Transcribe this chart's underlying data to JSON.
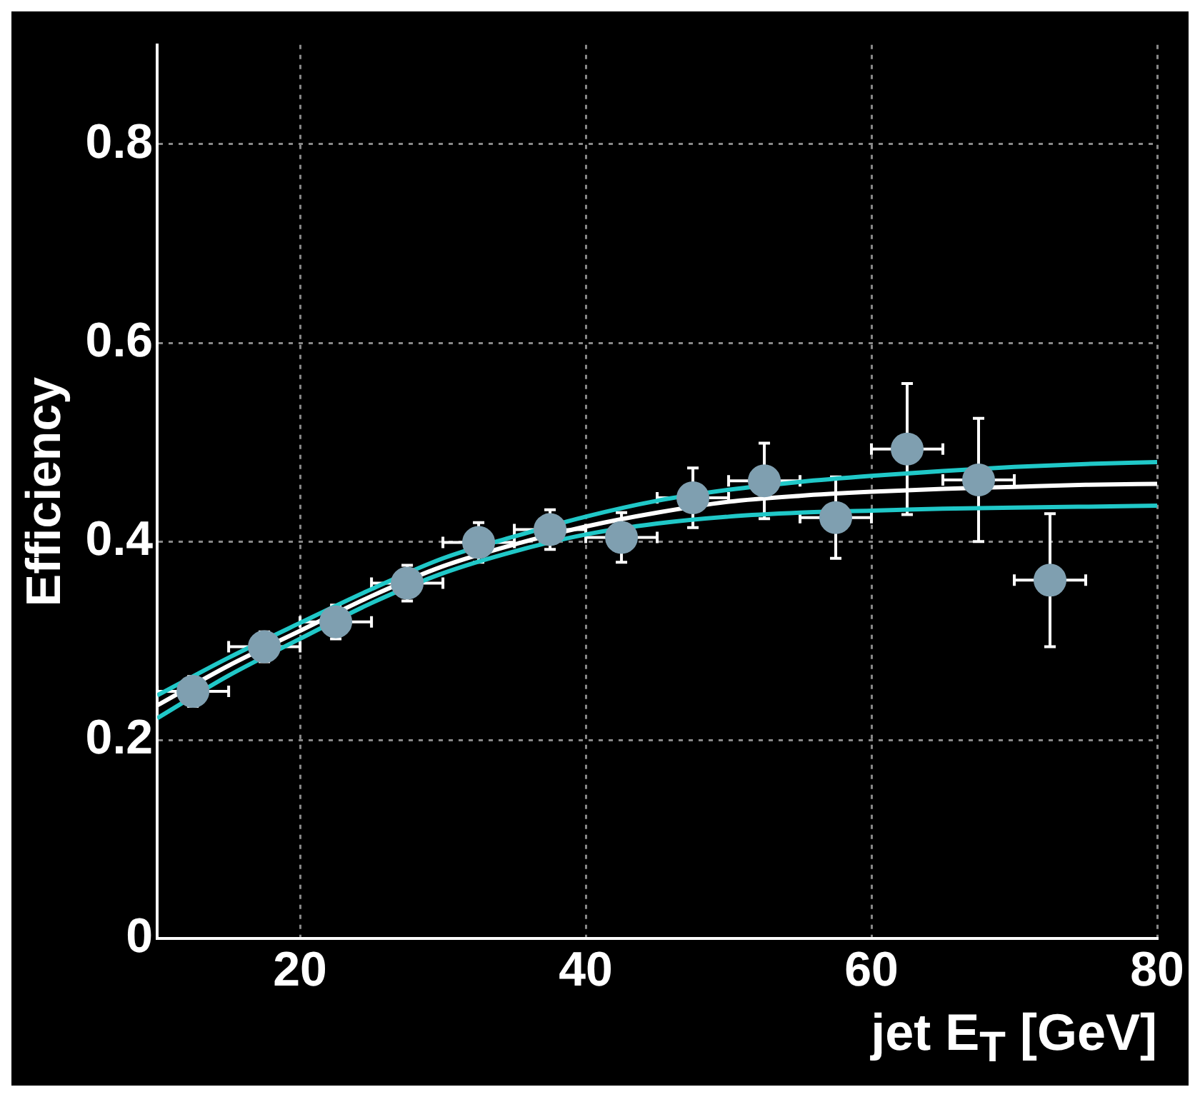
{
  "chart_data": {
    "type": "scatter",
    "xlabel": "jet E$_{T}$ [GeV]",
    "ylabel": "Efficiency",
    "xlim": [
      10,
      80
    ],
    "xticks": [
      20,
      40,
      60,
      80
    ],
    "ylim": [
      0,
      0.9
    ],
    "yticks": [
      0,
      0.2,
      0.4,
      0.6,
      0.8
    ],
    "grid": true,
    "legend": false,
    "series": [
      {
        "type": "scatter",
        "color": "#7f9fb0",
        "marker": "circle",
        "x": [
          12.5,
          17.5,
          22.5,
          27.5,
          32.5,
          37.5,
          42.5,
          47.5,
          52.5,
          57.5,
          62.5,
          67.5,
          72.5
        ],
        "values": [
          0.249,
          0.294,
          0.319,
          0.358,
          0.399,
          0.412,
          0.404,
          0.444,
          0.461,
          0.424,
          0.493,
          0.462,
          0.361
        ],
        "errors": [
          0.015,
          0.015,
          0.017,
          0.018,
          0.02,
          0.02,
          0.025,
          0.03,
          0.038,
          0.041,
          0.066,
          0.062,
          0.067
        ],
        "xerrors": [
          2.5,
          2.5,
          2.5,
          2.5,
          2.5,
          2.5,
          2.5,
          2.5,
          2.5,
          2.5,
          2.5,
          2.5,
          2.5
        ]
      },
      {
        "type": "line",
        "color": "#ffffff",
        "line_style": "solid",
        "x": [
          10,
          15,
          20,
          25,
          30,
          35,
          40,
          45,
          50,
          55,
          60,
          65,
          70,
          75,
          80
        ],
        "values": [
          0.235,
          0.275,
          0.31,
          0.345,
          0.375,
          0.397,
          0.415,
          0.429,
          0.44,
          0.446,
          0.45,
          0.453,
          0.455,
          0.457,
          0.458
        ]
      },
      {
        "type": "line",
        "color": "#20c8c8",
        "line_style": "solid",
        "x": [
          10,
          15,
          20,
          25,
          30,
          35,
          40,
          45,
          50,
          55,
          60,
          65,
          70,
          75,
          80
        ],
        "values": [
          0.245,
          0.283,
          0.318,
          0.352,
          0.383,
          0.405,
          0.425,
          0.441,
          0.452,
          0.46,
          0.466,
          0.471,
          0.475,
          0.478,
          0.48
        ]
      },
      {
        "type": "line",
        "color": "#20c8c8",
        "line_style": "solid",
        "x": [
          10,
          15,
          20,
          25,
          30,
          35,
          40,
          45,
          50,
          55,
          60,
          65,
          70,
          75,
          80
        ],
        "values": [
          0.222,
          0.265,
          0.302,
          0.338,
          0.368,
          0.39,
          0.407,
          0.418,
          0.425,
          0.429,
          0.431,
          0.433,
          0.434,
          0.435,
          0.436
        ]
      }
    ]
  }
}
